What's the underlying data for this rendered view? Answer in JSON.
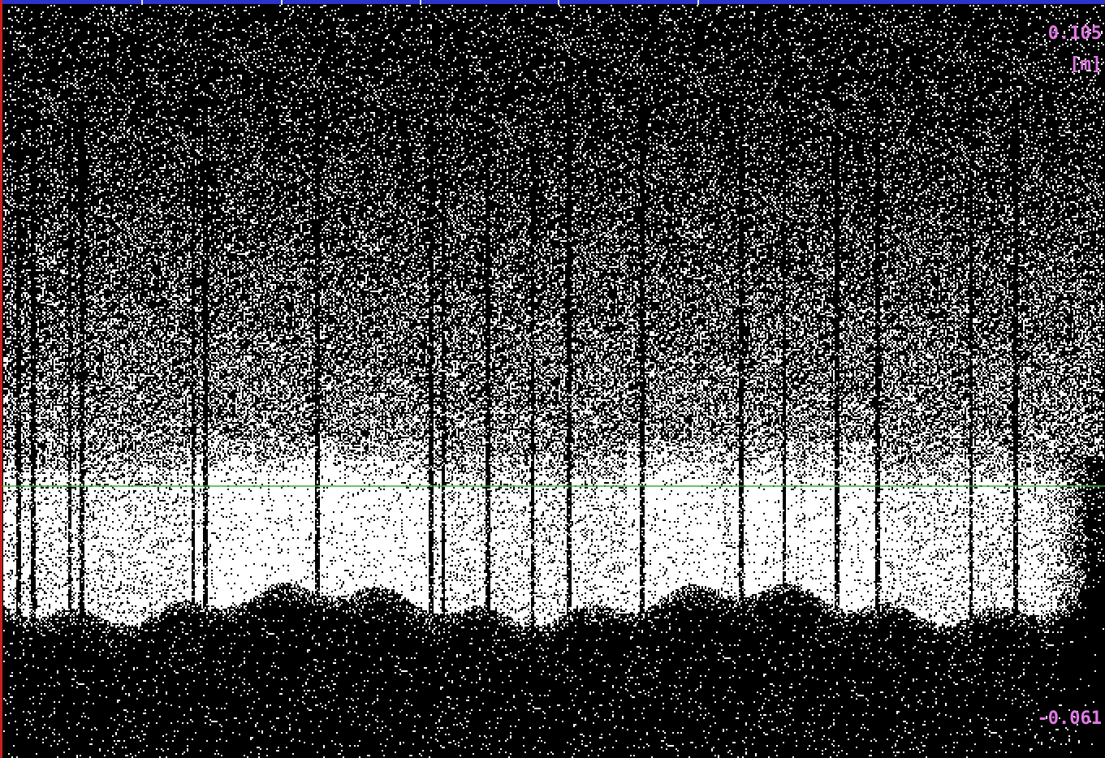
{
  "scale": {
    "top": "0.105",
    "unit": "[m]",
    "bottom": "-0.061"
  }
}
